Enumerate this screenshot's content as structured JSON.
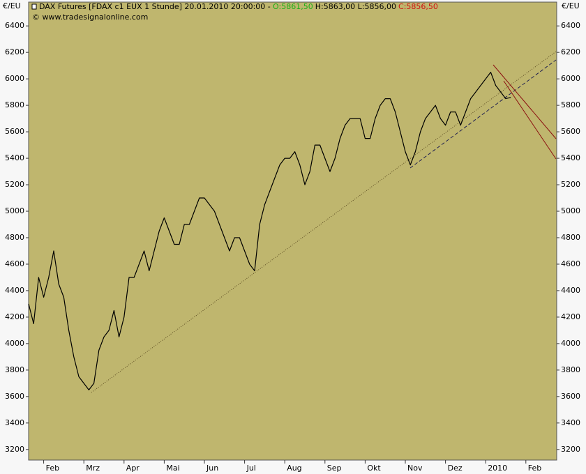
{
  "chart_data": {
    "type": "line",
    "title": "DAX Futures [FDAX c1 EUX  1 Stunde] 20.01.2010 20:00:00 -",
    "quote": {
      "open": "O:5861,50",
      "high_low": "H:5863,00 L:5856,00",
      "close": "C:5856,50"
    },
    "subtitle": "© www.tradesignalonline.com",
    "y_unit_left": "€/EU",
    "y_unit_right": "€/EU",
    "categories": [
      null,
      null,
      null,
      "Feb",
      null,
      null,
      null,
      null,
      null,
      null,
      null,
      "Mrz",
      null,
      null,
      null,
      null,
      null,
      null,
      null,
      "Apr",
      null,
      null,
      null,
      null,
      null,
      null,
      null,
      "Mai",
      null,
      null,
      null,
      null,
      null,
      null,
      null,
      "Jun",
      null,
      null,
      null,
      null,
      null,
      null,
      null,
      "Jul",
      null,
      null,
      null,
      null,
      null,
      null,
      null,
      "Aug",
      null,
      null,
      null,
      null,
      null,
      null,
      null,
      "Sep",
      null,
      null,
      null,
      null,
      null,
      null,
      null,
      "Okt",
      null,
      null,
      null,
      null,
      null,
      null,
      null,
      "Nov",
      null,
      null,
      null,
      null,
      null,
      null,
      null,
      "Dez",
      null,
      null,
      null,
      null,
      null,
      null,
      null,
      "2010",
      null,
      null,
      null,
      null,
      null,
      null,
      null,
      "Feb",
      null,
      null,
      null,
      null,
      null,
      null
    ],
    "values": [
      4300,
      4150,
      4500,
      4350,
      4500,
      4700,
      4450,
      4350,
      4100,
      3900,
      3750,
      3700,
      3650,
      3700,
      3950,
      4050,
      4100,
      4250,
      4050,
      4200,
      4500,
      4500,
      4600,
      4700,
      4550,
      4700,
      4850,
      4950,
      4850,
      4750,
      4750,
      4900,
      4900,
      5000,
      5100,
      5100,
      5050,
      5000,
      4900,
      4800,
      4700,
      4800,
      4800,
      4700,
      4600,
      4550,
      4900,
      5050,
      5150,
      5250,
      5350,
      5400,
      5400,
      5450,
      5350,
      5200,
      5300,
      5500,
      5500,
      5400,
      5300,
      5400,
      5550,
      5650,
      5700,
      5700,
      5700,
      5550,
      5550,
      5700,
      5800,
      5850,
      5850,
      5750,
      5600,
      5450,
      5350,
      5450,
      5600,
      5700,
      5750,
      5800,
      5700,
      5650,
      5750,
      5750,
      5650,
      5750,
      5850,
      5900,
      5950,
      6000,
      6050,
      5950,
      5900,
      5850,
      5860,
      null,
      null,
      null,
      null,
      null,
      null,
      null,
      null,
      null
    ],
    "color": "#000000",
    "background": "#bfb66e",
    "ylim": [
      3120,
      6580
    ],
    "yticks": [
      3200,
      3400,
      3600,
      3800,
      4000,
      4200,
      4400,
      4600,
      4800,
      5000,
      5200,
      5400,
      5600,
      5800,
      6000,
      6200,
      6400
    ]
  }
}
